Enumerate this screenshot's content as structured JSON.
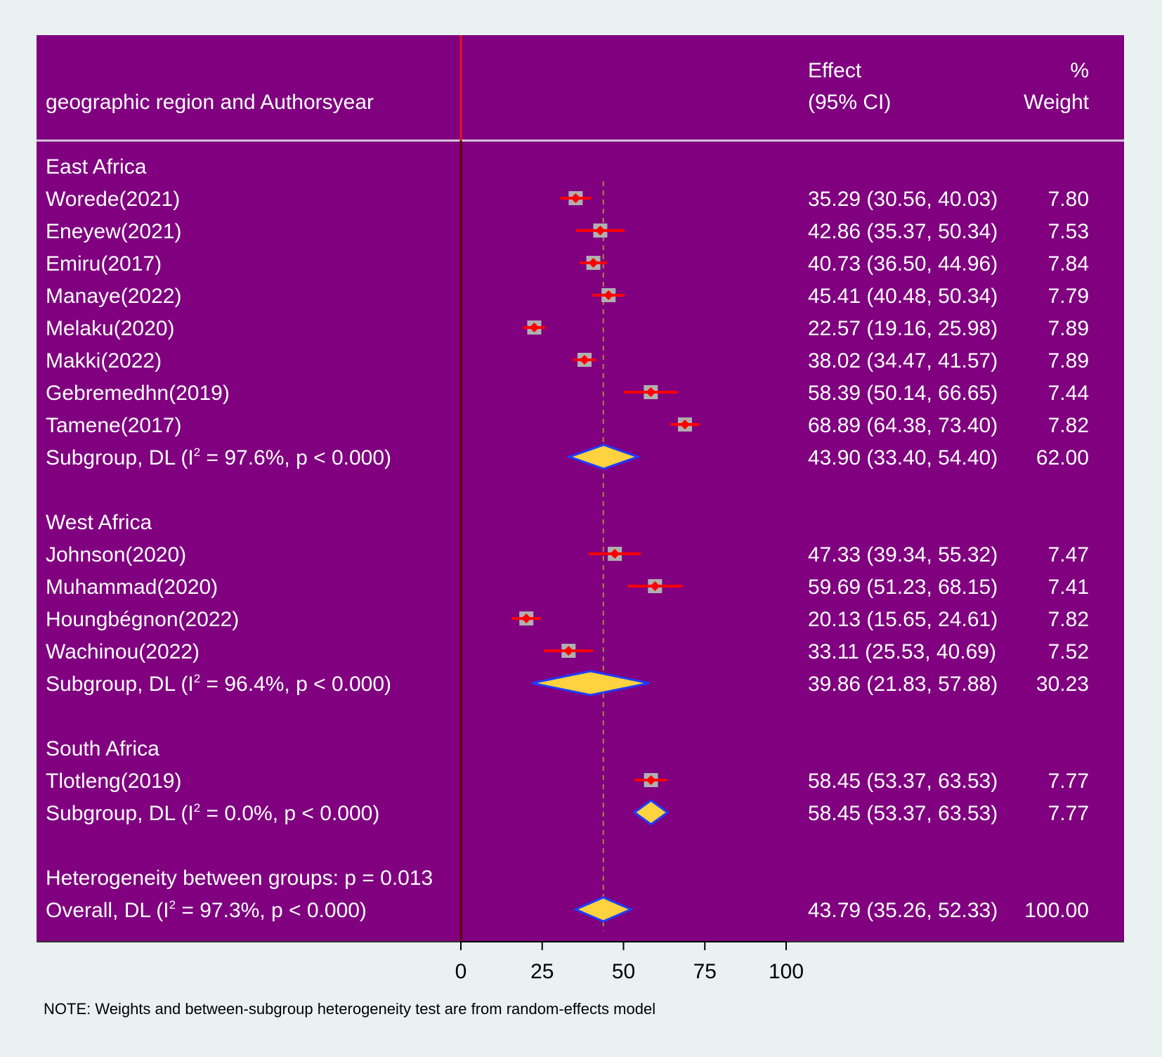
{
  "chart_data": {
    "type": "forest",
    "header": {
      "col1": "geographic region and Authorsyear",
      "effect_line1": "Effect",
      "effect_line2": "(95% CI)",
      "weight_line1": "%",
      "weight_line2": "Weight"
    },
    "groups": [
      {
        "name": "East Africa",
        "studies": [
          {
            "label": "Worede(2021)",
            "effect": 35.29,
            "lo": 30.56,
            "hi": 40.03,
            "ci_text": "35.29 (30.56, 40.03)",
            "weight": "7.80"
          },
          {
            "label": "Eneyew(2021)",
            "effect": 42.86,
            "lo": 35.37,
            "hi": 50.34,
            "ci_text": "42.86 (35.37, 50.34)",
            "weight": "7.53"
          },
          {
            "label": "Emiru(2017)",
            "effect": 40.73,
            "lo": 36.5,
            "hi": 44.96,
            "ci_text": "40.73 (36.50, 44.96)",
            "weight": "7.84"
          },
          {
            "label": "Manaye(2022)",
            "effect": 45.41,
            "lo": 40.48,
            "hi": 50.34,
            "ci_text": "45.41 (40.48, 50.34)",
            "weight": "7.79"
          },
          {
            "label": "Melaku(2020)",
            "effect": 22.57,
            "lo": 19.16,
            "hi": 25.98,
            "ci_text": "22.57 (19.16, 25.98)",
            "weight": "7.89"
          },
          {
            "label": "Makki(2022)",
            "effect": 38.02,
            "lo": 34.47,
            "hi": 41.57,
            "ci_text": "38.02 (34.47, 41.57)",
            "weight": "7.89"
          },
          {
            "label": "Gebremedhn(2019)",
            "effect": 58.39,
            "lo": 50.14,
            "hi": 66.65,
            "ci_text": "58.39 (50.14, 66.65)",
            "weight": "7.44"
          },
          {
            "label": "Tamene(2017)",
            "effect": 68.89,
            "lo": 64.38,
            "hi": 73.4,
            "ci_text": "68.89 (64.38, 73.40)",
            "weight": "7.82"
          }
        ],
        "subgroup": {
          "label_prefix": "Subgroup, DL (I",
          "label_suffix": " = 97.6%, p < 0.000)",
          "effect": 43.9,
          "lo": 33.4,
          "hi": 54.4,
          "ci_text": "43.90 (33.40, 54.40)",
          "weight": "62.00"
        }
      },
      {
        "name": "West Africa",
        "studies": [
          {
            "label": "Johnson(2020)",
            "effect": 47.33,
            "lo": 39.34,
            "hi": 55.32,
            "ci_text": "47.33 (39.34, 55.32)",
            "weight": "7.47"
          },
          {
            "label": "Muhammad(2020)",
            "effect": 59.69,
            "lo": 51.23,
            "hi": 68.15,
            "ci_text": "59.69 (51.23, 68.15)",
            "weight": "7.41"
          },
          {
            "label": "Houngbégnon(2022)",
            "effect": 20.13,
            "lo": 15.65,
            "hi": 24.61,
            "ci_text": "20.13 (15.65, 24.61)",
            "weight": "7.82"
          },
          {
            "label": "Wachinou(2022)",
            "effect": 33.11,
            "lo": 25.53,
            "hi": 40.69,
            "ci_text": "33.11 (25.53, 40.69)",
            "weight": "7.52"
          }
        ],
        "subgroup": {
          "label_prefix": "Subgroup, DL (I",
          "label_suffix": " = 96.4%, p < 0.000)",
          "effect": 39.86,
          "lo": 21.83,
          "hi": 57.88,
          "ci_text": "39.86 (21.83, 57.88)",
          "weight": "30.23"
        }
      },
      {
        "name": "South Africa",
        "studies": [
          {
            "label": "Tlotleng(2019)",
            "effect": 58.45,
            "lo": 53.37,
            "hi": 63.53,
            "ci_text": "58.45 (53.37, 63.53)",
            "weight": "7.77"
          }
        ],
        "subgroup": {
          "label_prefix": "Subgroup, DL (I",
          "label_suffix": " = 0.0%, p < 0.000)",
          "effect": 58.45,
          "lo": 53.37,
          "hi": 63.53,
          "ci_text": "58.45 (53.37, 63.53)",
          "weight": "7.77"
        }
      }
    ],
    "heterogeneity": "Heterogeneity between groups: p = 0.013",
    "overall": {
      "label_prefix": "Overall, DL (I",
      "label_suffix": " = 97.3%, p < 0.000)",
      "effect": 43.79,
      "lo": 35.26,
      "hi": 52.33,
      "ci_text": "43.79 (35.26, 52.33)",
      "weight": "100.00"
    },
    "superscript": "2",
    "x_ticks": [
      0,
      25,
      50,
      75,
      100
    ],
    "x_tick_labels": [
      "0",
      "25",
      "50",
      "75",
      "100"
    ],
    "xlim": [
      0,
      100
    ],
    "null_line": 0,
    "overall_line": 43.79,
    "note": "NOTE: Weights and between-subgroup heterogeneity test are from random-effects model",
    "colors": {
      "panel": "#800080",
      "background": "#eaf2f1",
      "ci_line": "#ff0000",
      "point": "#ff0000",
      "weight_box": "#b0b0b0",
      "diamond_fill": "#ffd23f",
      "diamond_stroke": "#1f3cff",
      "null_line": "#e8141b",
      "overall_line": "#b08040",
      "text": "#ffffff",
      "axis_text": "#000000"
    }
  }
}
